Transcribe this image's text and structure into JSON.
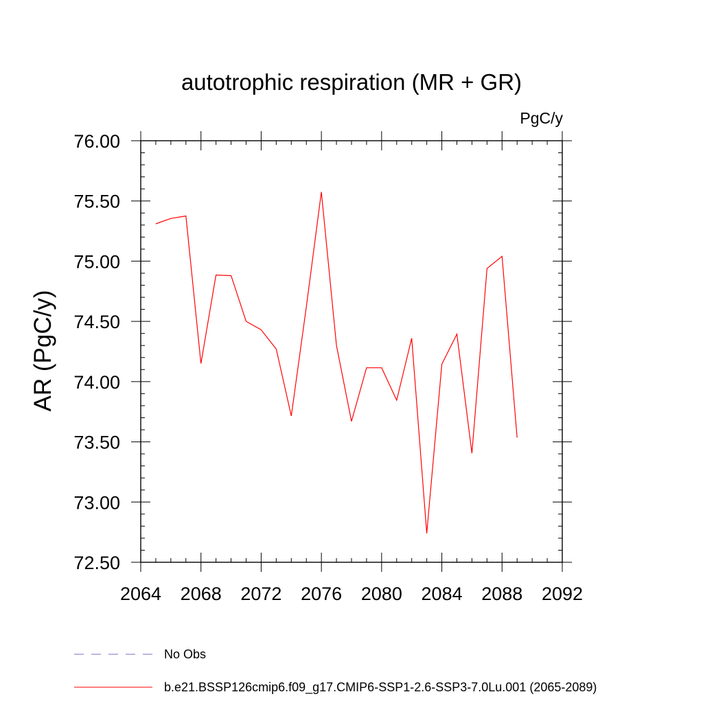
{
  "chart_data": {
    "type": "line",
    "title": "autotrophic respiration (MR + GR)",
    "units_label": "PgC/y",
    "ylabel": "AR  (PgC/y)",
    "xlabel": "",
    "xlim": [
      2064,
      2092
    ],
    "ylim": [
      72.5,
      76.0
    ],
    "x_major_ticks": [
      2064,
      2068,
      2072,
      2076,
      2080,
      2084,
      2088,
      2092
    ],
    "x_tick_labels": [
      "2064",
      "2068",
      "2072",
      "2076",
      "2080",
      "2084",
      "2088",
      "2092"
    ],
    "x_minor_step": 1,
    "y_major_ticks": [
      72.5,
      73.0,
      73.5,
      74.0,
      74.5,
      75.0,
      75.5,
      76.0
    ],
    "y_tick_labels": [
      "72.50",
      "73.00",
      "73.50",
      "74.00",
      "74.50",
      "75.00",
      "75.50",
      "76.00"
    ],
    "y_minor_step": 0.1,
    "grid": false,
    "legend_position": "bottom-left, below plot",
    "legend": [
      {
        "label": "No Obs",
        "color": "#7b68c8",
        "style": "dashed"
      },
      {
        "label": "b.e21.BSSP126cmip6.f09_g17.CMIP6-SSP1-2.6-SSP3-7.0Lu.001 (2065-2089)",
        "color": "#ff0000",
        "style": "solid"
      }
    ],
    "series": [
      {
        "name": "b.e21.BSSP126cmip6.f09_g17.CMIP6-SSP1-2.6-SSP3-7.0Lu.001 (2065-2089)",
        "color": "#ff0000",
        "x": [
          2065,
          2066,
          2067,
          2068,
          2069,
          2070,
          2071,
          2072,
          2073,
          2074,
          2075,
          2076,
          2077,
          2078,
          2079,
          2080,
          2081,
          2082,
          2083,
          2084,
          2085,
          2086,
          2087,
          2088,
          2089
        ],
        "y": [
          75.31,
          75.355,
          75.375,
          74.15,
          74.885,
          74.88,
          74.5,
          74.43,
          74.27,
          73.715,
          74.62,
          75.575,
          74.3,
          73.67,
          74.115,
          74.115,
          73.845,
          74.36,
          72.74,
          74.145,
          74.395,
          73.405,
          74.94,
          75.04,
          73.535
        ]
      }
    ]
  }
}
